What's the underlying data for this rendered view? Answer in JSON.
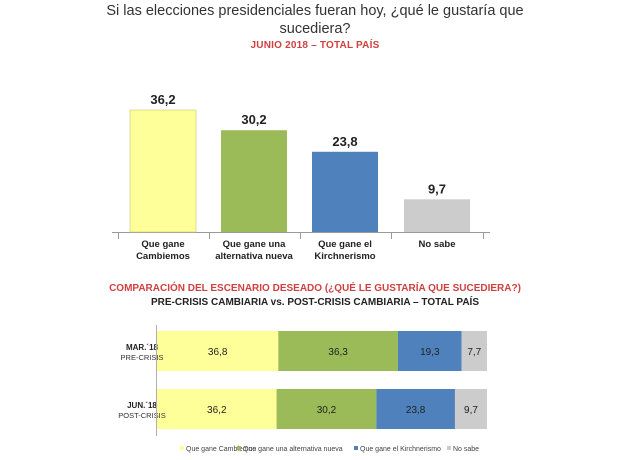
{
  "header": {
    "title_line1": "Si las elecciones presidenciales fueran hoy, ¿qué le gustaría que",
    "title_line2": "sucediera?",
    "subtitle": "JUNIO 2018 – TOTAL PAÍS"
  },
  "comparison": {
    "title": "COMPARACIÓN DEL ESCENARIO DESEADO (¿QUÉ LE GUSTARÍA QUE SUCEDIERA?)",
    "subtitle": "PRE-CRISIS CAMBIARIA vs. POST-CRISIS CAMBIARIA – TOTAL PAÍS"
  },
  "colors": {
    "cambiemos": "#ffff99",
    "alternativa": "#9bbb59",
    "kirchnerismo": "#4f81bd",
    "nosabe": "#cccccc"
  },
  "chart_data": [
    {
      "type": "bar",
      "title": "Si las elecciones presidenciales fueran hoy, ¿qué le gustaría que sucediera?",
      "subtitle": "JUNIO 2018 – TOTAL PAÍS",
      "categories": [
        [
          "Que gane",
          "Cambiemos"
        ],
        [
          "Que gane una",
          "alternativa nueva"
        ],
        [
          "Que gane el",
          "Kirchnerismo"
        ],
        [
          "No sabe"
        ]
      ],
      "values": [
        36.2,
        30.2,
        23.8,
        9.7
      ],
      "value_labels": [
        "36,2",
        "30,2",
        "23,8",
        "9,7"
      ],
      "ylim": [
        0,
        40
      ]
    },
    {
      "type": "bar",
      "orientation": "horizontal-stacked",
      "title": "COMPARACIÓN DEL ESCENARIO DESEADO (¿QUÉ LE GUSTARÍA QUE SUCEDIERA?)",
      "subtitle": "PRE-CRISIS CAMBIARIA vs. POST-CRISIS CAMBIARIA – TOTAL PAÍS",
      "rows": [
        {
          "label": "MAR.´18",
          "sublabel": "PRE-CRISIS",
          "values": [
            36.8,
            36.3,
            19.3,
            7.7
          ],
          "value_labels": [
            "36,8",
            "36,3",
            "19,3",
            "7,7"
          ]
        },
        {
          "label": "JUN.´18",
          "sublabel": "POST-CRISIS",
          "values": [
            36.2,
            30.2,
            23.8,
            9.7
          ],
          "value_labels": [
            "36,2",
            "30,2",
            "23,8",
            "9,7"
          ]
        }
      ],
      "series": [
        {
          "name": "Que gane Cambiemos",
          "color": "#ffff99"
        },
        {
          "name": "Que gane una alternativa nueva",
          "color": "#9bbb59"
        },
        {
          "name": "Que gane el Kirchnerismo",
          "color": "#4f81bd"
        },
        {
          "name": "No sabe",
          "color": "#cccccc"
        }
      ],
      "legend": "bottom"
    }
  ]
}
